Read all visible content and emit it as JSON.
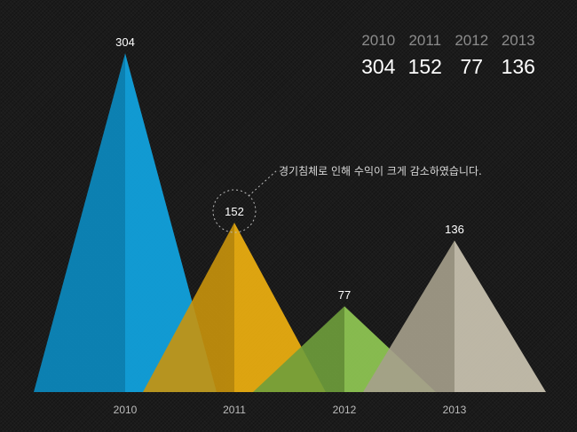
{
  "chart_data": {
    "type": "area",
    "categories": [
      "2010",
      "2011",
      "2012",
      "2013"
    ],
    "values": [
      304,
      152,
      77,
      136
    ],
    "colors": [
      "#11a8e6",
      "#f2b310",
      "#93cc55",
      "#cfc8b5"
    ],
    "shade_colors": [
      "#0b8cc2",
      "#c9940c",
      "#6f9e3c",
      "#a6a08c"
    ],
    "ylim": [
      0,
      304
    ]
  },
  "summary": {
    "years": [
      "2010",
      "2011",
      "2012",
      "2013"
    ],
    "values": [
      "304",
      "152",
      "77",
      "136"
    ]
  },
  "annotation": {
    "text": "경기침체로 인해 수익이 크게 감소하였습니다."
  }
}
